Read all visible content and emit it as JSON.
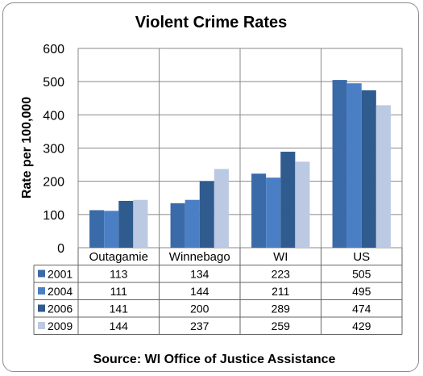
{
  "chart_data": {
    "type": "bar",
    "title": "Violent Crime Rates",
    "ylabel": "Rate per 100,000",
    "ylim": [
      0,
      600
    ],
    "yticks": [
      "0",
      "100",
      "200",
      "300",
      "400",
      "500",
      "600"
    ],
    "grid": true,
    "categories": [
      "Outagamie",
      "Winnebago",
      "WI",
      "US"
    ],
    "series": [
      {
        "name": "2001",
        "color": "#3a6aa8",
        "values": [
          113,
          134,
          223,
          505
        ]
      },
      {
        "name": "2004",
        "color": "#4a7fc6",
        "values": [
          111,
          144,
          211,
          495
        ]
      },
      {
        "name": "2006",
        "color": "#2f5b8e",
        "values": [
          141,
          200,
          289,
          474
        ]
      },
      {
        "name": "2009",
        "color": "#bcc9e3",
        "values": [
          144,
          237,
          259,
          429
        ]
      }
    ],
    "table": {
      "rows": [
        [
          "113",
          "134",
          "223",
          "505"
        ],
        [
          "111",
          "144",
          "211",
          "495"
        ],
        [
          "141",
          "200",
          "289",
          "474"
        ],
        [
          "144",
          "237",
          "259",
          "429"
        ]
      ]
    },
    "source": "Source: WI Office of Justice Assistance"
  }
}
